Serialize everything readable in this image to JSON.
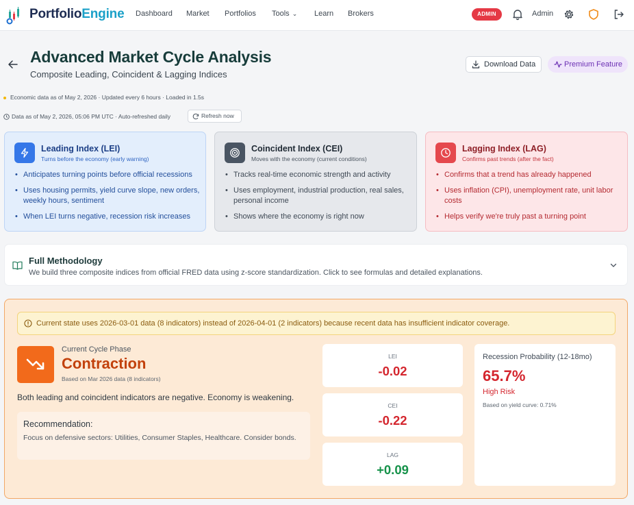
{
  "nav": {
    "brand_part1": "Portfolio",
    "brand_part2": "Engine",
    "links": [
      "Dashboard",
      "Market",
      "Portfolios",
      "Tools",
      "Learn",
      "Brokers"
    ],
    "admin_badge": "ADMIN",
    "user_name": "Admin",
    "icons": [
      "bell-icon",
      "gear-icon",
      "shield-icon",
      "logout-icon"
    ]
  },
  "header": {
    "title": "Advanced Market Cycle Analysis",
    "subtitle": "Composite Leading, Coincident & Lagging Indices",
    "download_label": "Download Data",
    "premium_label": "Premium Feature"
  },
  "meta": {
    "economic_line": "Economic data as of May 2, 2026 · Updated every 6 hours · Loaded in 1.5s",
    "data_line": "Data as of May 2, 2026, 05:06 PM UTC · Auto-refreshed daily",
    "refresh_label": "Refresh now"
  },
  "indices": {
    "lei": {
      "title": "Leading Index (LEI)",
      "subtitle": "Turns before the economy (early warning)",
      "bullets": [
        "Anticipates turning points before official recessions",
        "Uses housing permits, yield curve slope, new orders, weekly hours, sentiment",
        "When LEI turns negative, recession risk increases"
      ]
    },
    "cei": {
      "title": "Coincident Index (CEI)",
      "subtitle": "Moves with the economy (current conditions)",
      "bullets": [
        "Tracks real-time economic strength and activity",
        "Uses employment, industrial production, real sales, personal income",
        "Shows where the economy is right now"
      ]
    },
    "lag": {
      "title": "Lagging Index (LAG)",
      "subtitle": "Confirms past trends (after the fact)",
      "bullets": [
        "Confirms that a trend has already happened",
        "Uses inflation (CPI), unemployment rate, unit labor costs",
        "Helps verify we're truly past a turning point"
      ]
    }
  },
  "methodology": {
    "title": "Full Methodology",
    "description": "We build three composite indices from official FRED data using z-score standardization. Click to see formulas and detailed explanations."
  },
  "cycle": {
    "warning": "Current state uses 2026-03-01 data (8 indicators) instead of 2026-04-01 (2 indicators) because recent data has insufficient indicator coverage.",
    "phase_label": "Current Cycle Phase",
    "phase_value": "Contraction",
    "phase_note": "Based on Mar 2026 data (8 indicators)",
    "description": "Both leading and coincident indicators are negative. Economy is weakening.",
    "recommendation_title": "Recommendation:",
    "recommendation_text": "Focus on defensive sectors: Utilities, Consumer Staples, Healthcare. Consider bonds.",
    "stats": [
      {
        "label": "LEI",
        "value": "-0.02"
      },
      {
        "label": "CEI",
        "value": "-0.22"
      },
      {
        "label": "LAG",
        "value": "+0.09"
      }
    ],
    "recession": {
      "title": "Recession Probability (12-18mo)",
      "value": "65.7%",
      "risk": "High Risk",
      "note": "Based on yield curve: 0.71%"
    }
  },
  "colors": {
    "brand_navy": "#1d2c52",
    "brand_teal": "#1aa0c8",
    "admin_red": "#e53945",
    "contraction_orange": "#f26a1b",
    "negative_red": "#d4262e",
    "positive_green": "#16924a"
  }
}
